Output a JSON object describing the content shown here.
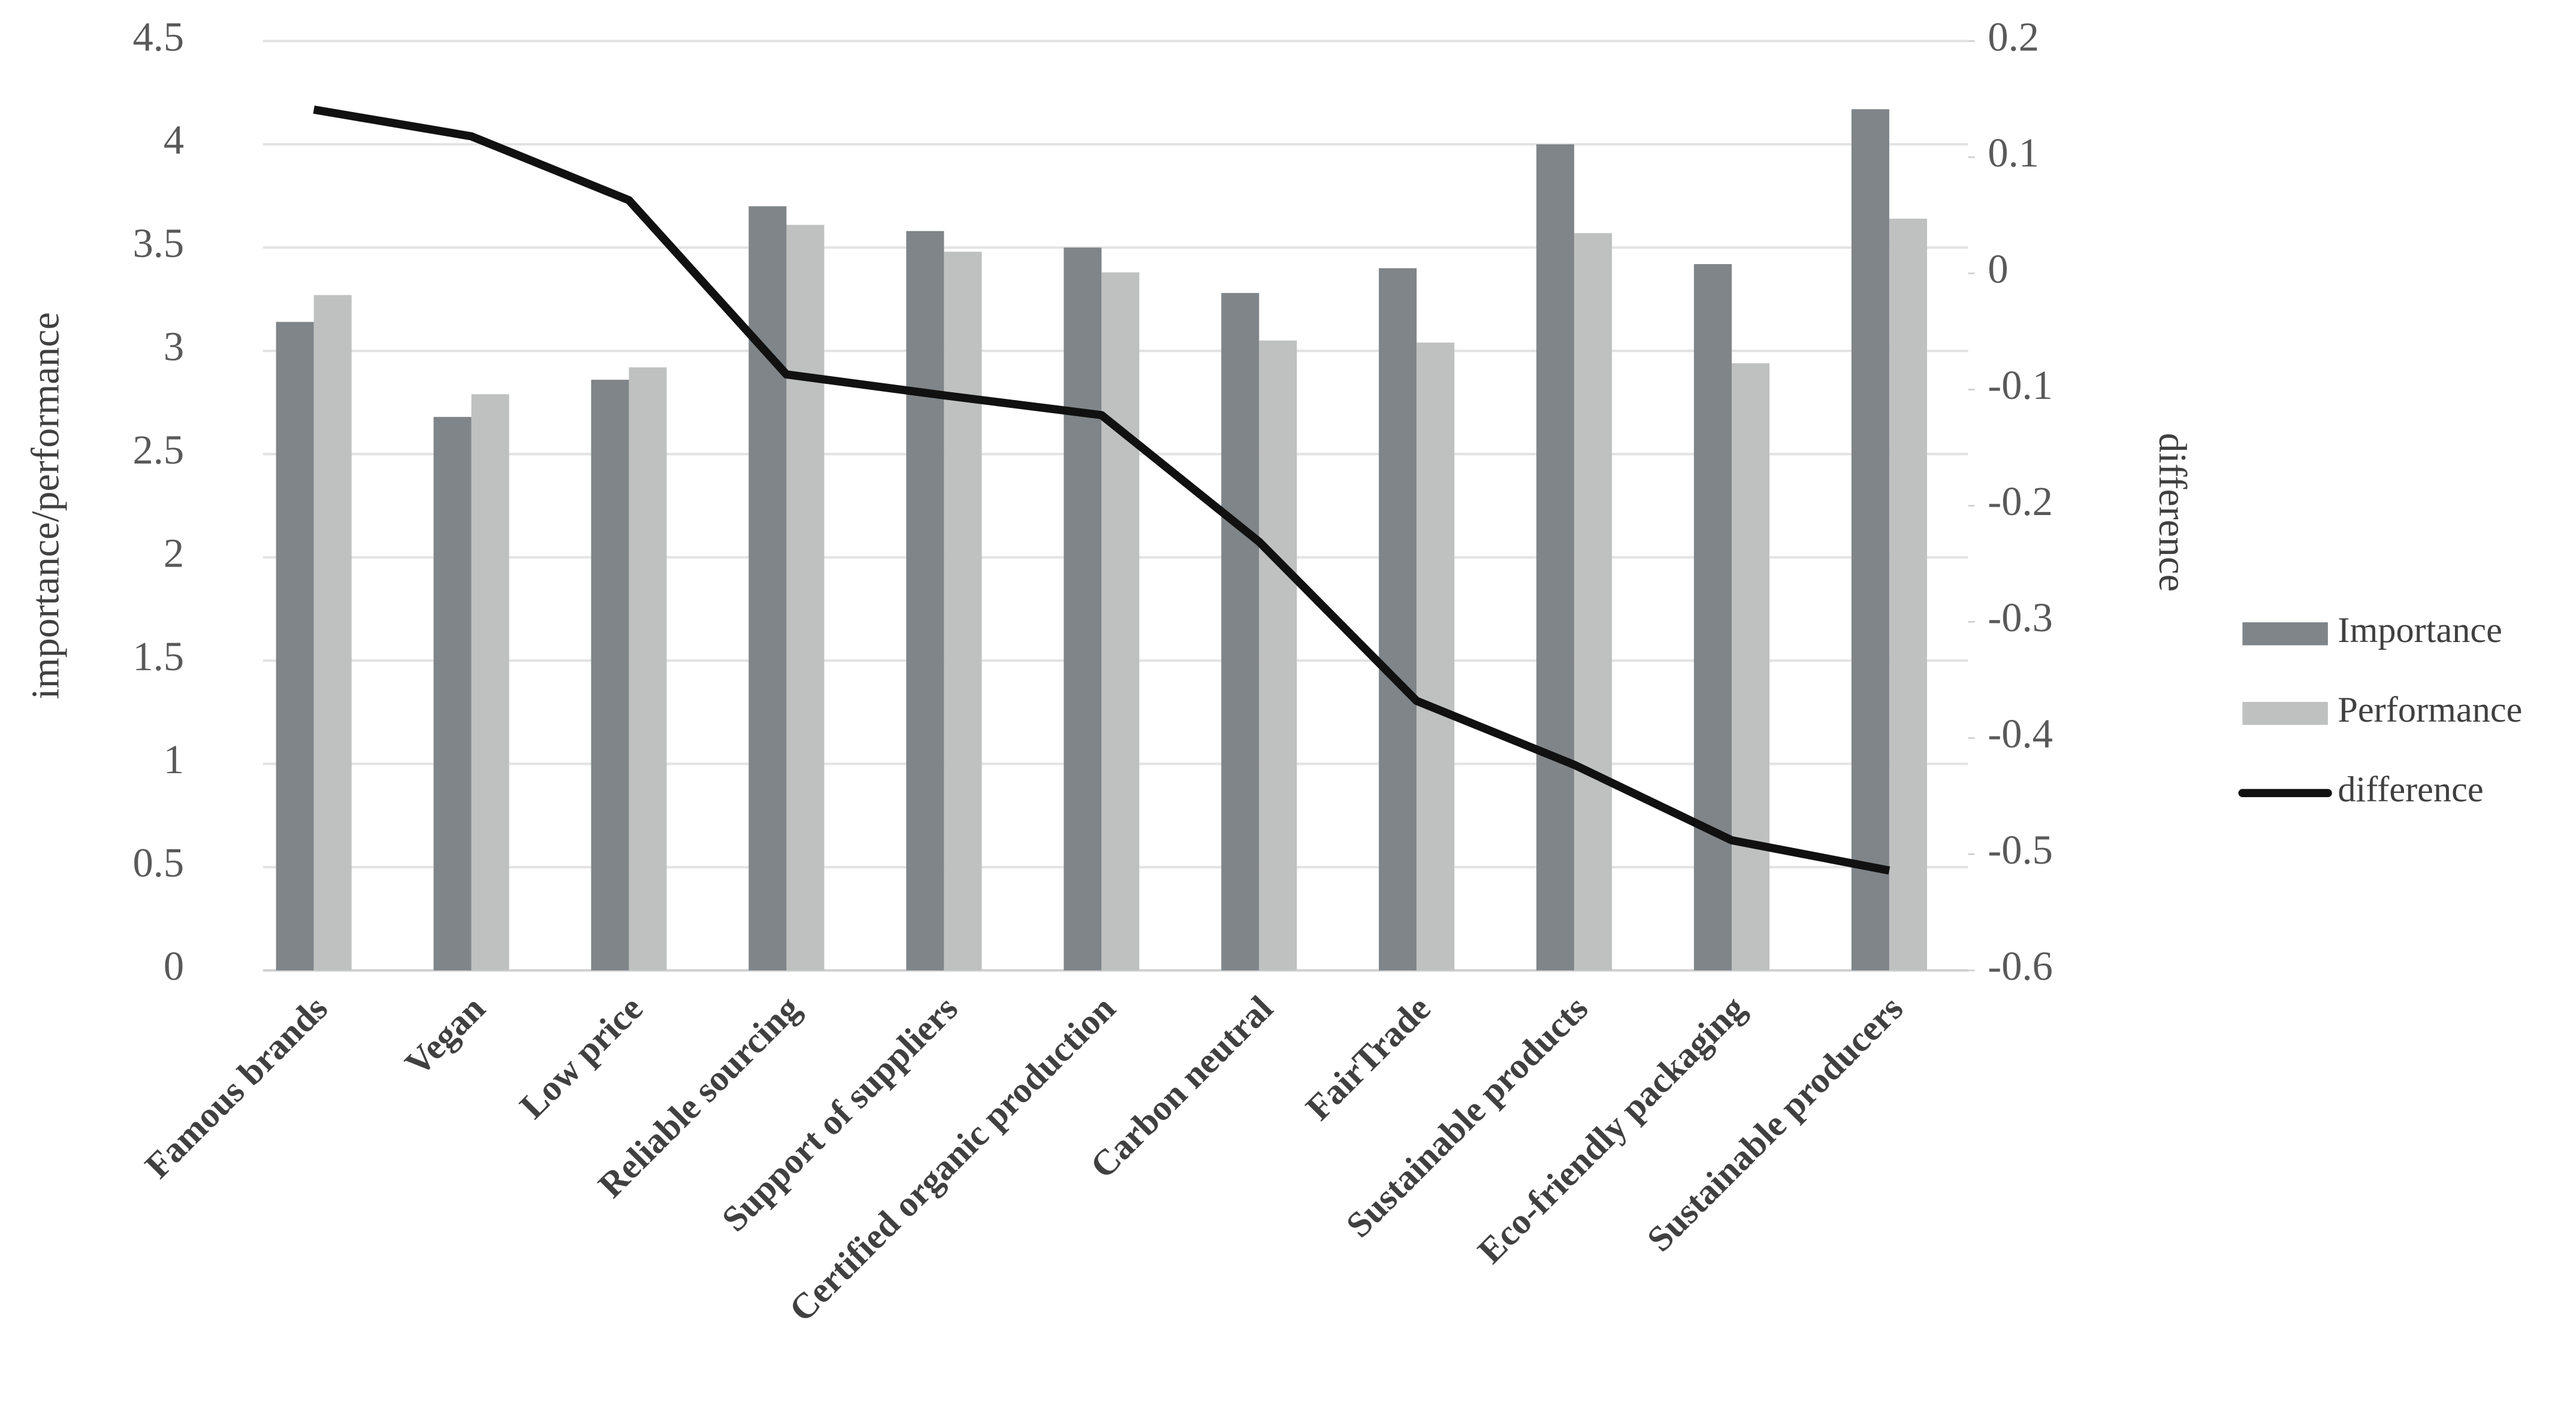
{
  "chart_data": {
    "type": "bar-line",
    "y_label": "importance/performance",
    "y2_label": "difference",
    "categories": [
      "Famous brands",
      "Vegan",
      "Low price",
      "Reliable sourcing",
      "Support of suppliers",
      "Certified organic production",
      "Carbon neutral",
      "FairTrade",
      "Sustainable products",
      "Eco-friendly packaging",
      "Sustainable producers"
    ],
    "series": [
      {
        "name": "Importance",
        "type": "bar",
        "color": "#7f8588",
        "values": [
          3.14,
          2.68,
          2.86,
          3.7,
          3.58,
          3.5,
          3.28,
          3.4,
          4.0,
          3.42,
          4.17
        ]
      },
      {
        "name": "Performance",
        "type": "bar",
        "color": "#bfc1c1",
        "values": [
          3.27,
          2.79,
          2.92,
          3.61,
          3.48,
          3.38,
          3.05,
          3.04,
          3.57,
          2.94,
          3.64
        ]
      },
      {
        "name": "difference",
        "type": "line",
        "axis": "y2",
        "color": "#111111",
        "values": [
          0.141,
          0.118,
          0.063,
          -0.087,
          -0.105,
          -0.122,
          -0.231,
          -0.368,
          -0.423,
          -0.488,
          -0.514
        ]
      }
    ],
    "ylim": [
      0,
      4.5
    ],
    "yticks": [
      0,
      0.5,
      1,
      1.5,
      2,
      2.5,
      3,
      3.5,
      4,
      4.5
    ],
    "y2lim": [
      -0.6,
      0.2
    ],
    "y2ticks": [
      -0.6,
      -0.5,
      -0.4,
      -0.3,
      -0.2,
      -0.1,
      0,
      0.1,
      0.2
    ],
    "grid": true,
    "legend": "right"
  }
}
